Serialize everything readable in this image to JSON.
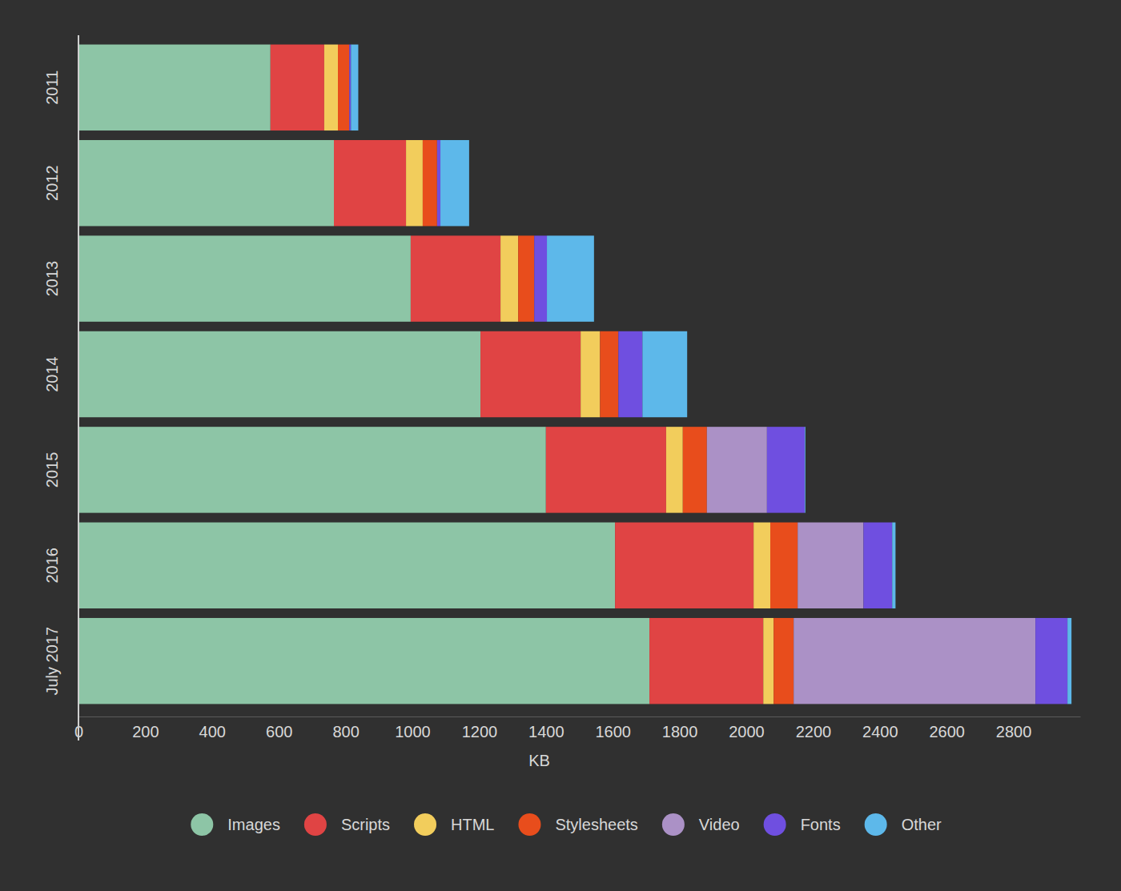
{
  "chart_data": {
    "type": "bar",
    "orientation": "horizontal",
    "stacked": true,
    "legend": "bottom",
    "xlabel": "KB",
    "categories": [
      "2011",
      "2012",
      "2013",
      "2014",
      "2015",
      "2016",
      "July 2017"
    ],
    "xlim": [
      0,
      3000
    ],
    "xticks": [
      0,
      200,
      400,
      600,
      800,
      1000,
      1200,
      1400,
      1600,
      1800,
      2000,
      2200,
      2400,
      2600,
      2800
    ],
    "series": [
      {
        "name": "Images",
        "color": "#8dc5a6",
        "values": [
          575,
          765,
          995,
          1204,
          1400,
          1607,
          1710
        ]
      },
      {
        "name": "Scripts",
        "color": "#e04444",
        "values": [
          161,
          216,
          269,
          300,
          360,
          415,
          341
        ]
      },
      {
        "name": "HTML",
        "color": "#f2cd5c",
        "values": [
          41,
          50,
          53,
          58,
          50,
          50,
          31
        ]
      },
      {
        "name": "Stylesheets",
        "color": "#e84d1c",
        "values": [
          34,
          43,
          48,
          55,
          72,
          82,
          60
        ]
      },
      {
        "name": "Video",
        "color": "#ab91c6",
        "values": [
          0,
          0,
          0,
          0,
          180,
          197,
          724
        ]
      },
      {
        "name": "Fonts",
        "color": "#6f4fe0",
        "values": [
          5,
          10,
          38,
          72,
          113,
          86,
          96
        ]
      },
      {
        "name": "Other",
        "color": "#5db8ea",
        "values": [
          22,
          86,
          141,
          134,
          2,
          10,
          12
        ]
      }
    ]
  }
}
